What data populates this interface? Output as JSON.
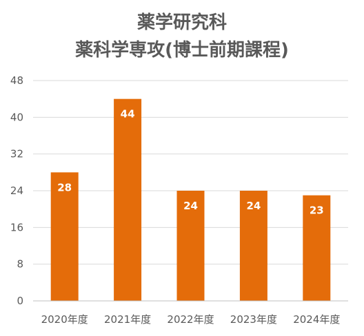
{
  "chart_data": {
    "type": "bar",
    "title_lines": [
      "薬学研究科",
      "薬科学専攻(博士前期課程)"
    ],
    "categories": [
      "2020年度",
      "2021年度",
      "2022年度",
      "2023年度",
      "2024年度"
    ],
    "values": [
      28,
      44,
      24,
      24,
      23
    ],
    "data_labels": [
      "28",
      "44",
      "24",
      "24",
      "23"
    ],
    "y_ticks": [
      0,
      8,
      16,
      24,
      32,
      40,
      48
    ],
    "y_tick_labels": [
      "0",
      "8",
      "16",
      "24",
      "32",
      "40",
      "48"
    ],
    "ylim": [
      0,
      48
    ],
    "xlabel": "",
    "ylabel": "",
    "grid": true,
    "legend": "none",
    "colors": {
      "bar": "#E46C0A",
      "grid": "#D9D9D9",
      "axis": "#BFBFBF",
      "text": "#595959"
    }
  }
}
